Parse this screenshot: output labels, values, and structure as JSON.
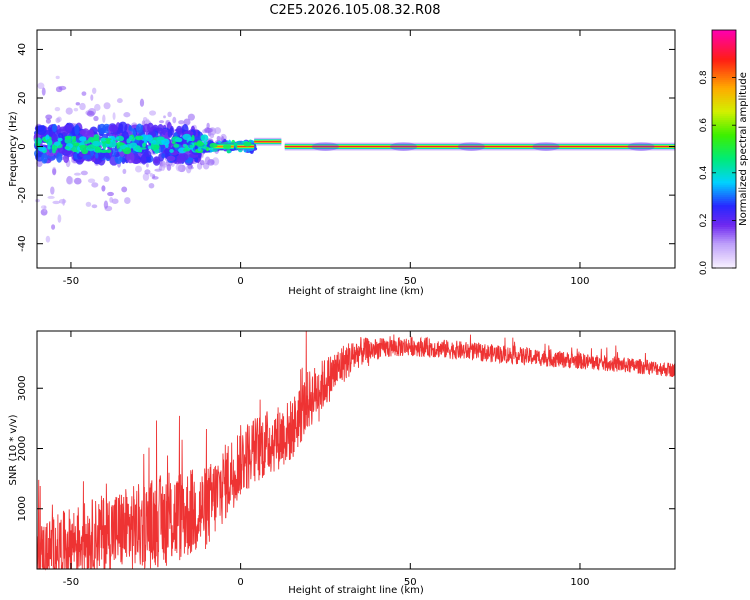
{
  "title": "C2E5.2026.105.08.32.R08",
  "chart_data": [
    {
      "type": "heatmap",
      "xlabel": "Height of straight line (km)",
      "ylabel": "Frequency (Hz)",
      "xlim": [
        -60,
        128
      ],
      "ylim": [
        -50,
        48
      ],
      "xticks": [
        -50,
        0,
        50,
        100
      ],
      "yticks": [
        -40,
        -20,
        0,
        20,
        40
      ],
      "xtick_labels": [
        "-50",
        "0",
        "50",
        "100"
      ],
      "ytick_labels": [
        "-40",
        "-20",
        "0",
        "20",
        "40"
      ],
      "description_of_ridge": [
        {
          "x_range": [
            -60,
            -15
          ],
          "center_hz": 1,
          "spread_hz": 6,
          "level": "noisy"
        },
        {
          "x_range": [
            -15,
            4
          ],
          "center_hz": 0,
          "spread_hz": 2,
          "level": "mixed"
        },
        {
          "x_range": [
            4,
            12
          ],
          "center_hz": 2,
          "spread_hz": 1.5,
          "level": "strong"
        },
        {
          "x_range": [
            12,
            128
          ],
          "center_hz": 0,
          "spread_hz": 1,
          "level": "strong"
        }
      ]
    },
    {
      "type": "colorbar",
      "label": "Normalized spectral amplitude",
      "range": [
        0,
        1
      ],
      "ticks": [
        0.0,
        0.2,
        0.4,
        0.6,
        0.8
      ],
      "tick_labels": [
        "0.0",
        "0.2",
        "0.4",
        "0.6",
        "0.8"
      ]
    },
    {
      "type": "line",
      "xlabel": "Height of straight line (km)",
      "ylabel": "SNR (10 * v/v)",
      "xlim": [
        -60,
        128
      ],
      "ylim": [
        0,
        3950
      ],
      "xticks": [
        -50,
        0,
        50,
        100
      ],
      "yticks": [
        1000,
        2000,
        3000
      ],
      "xtick_labels": [
        "-50",
        "0",
        "50",
        "100"
      ],
      "ytick_labels": [
        "1000",
        "2000",
        "3000"
      ],
      "color": "#ee3333",
      "trend": {
        "x": [
          -60,
          -50,
          -40,
          -30,
          -20,
          -10,
          0,
          5,
          10,
          15,
          20,
          25,
          30,
          35,
          40,
          50,
          60,
          70,
          80,
          90,
          100,
          110,
          120,
          128
        ],
        "y": [
          250,
          450,
          600,
          700,
          850,
          1000,
          1800,
          2000,
          2150,
          2300,
          2800,
          3100,
          3400,
          3600,
          3650,
          3700,
          3650,
          3600,
          3550,
          3500,
          3450,
          3400,
          3350,
          3300
        ]
      },
      "noise": {
        "x": [
          -60,
          -20,
          0,
          20,
          40,
          128
        ],
        "amp": [
          500,
          800,
          600,
          500,
          170,
          120
        ]
      }
    }
  ]
}
